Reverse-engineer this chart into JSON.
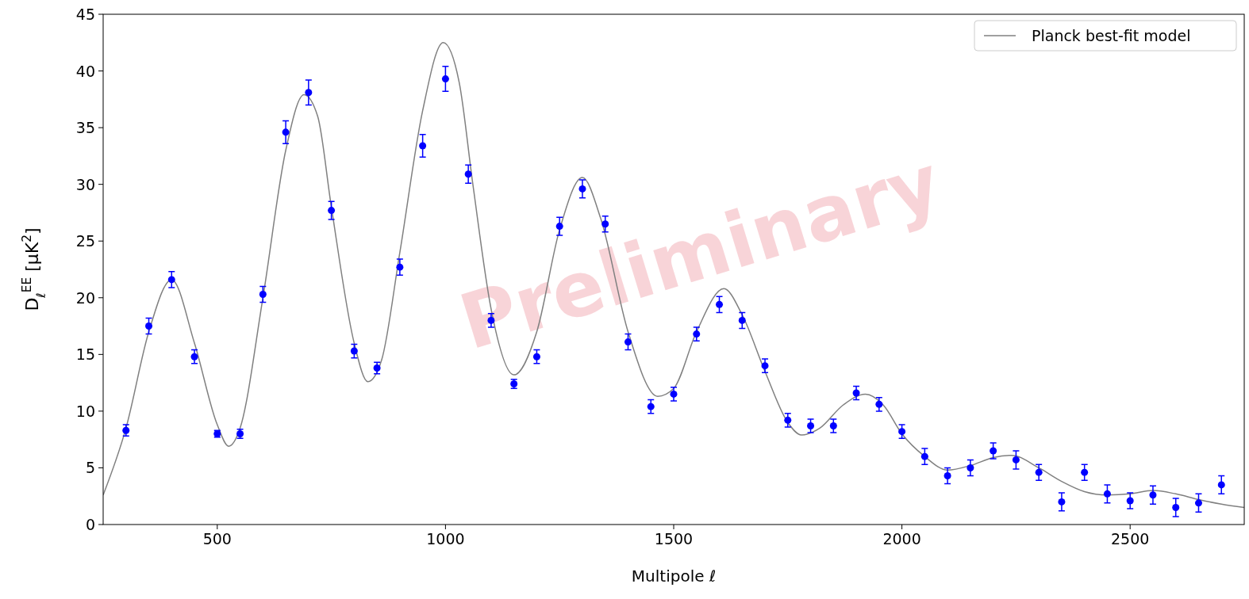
{
  "chart_data": {
    "type": "scatter",
    "xlabel": "Multipole ℓ",
    "ylabel": "D$_{ℓ}$$^{EE}$ [μK$^{2}$]",
    "xlim": [
      250,
      2750
    ],
    "ylim": [
      0,
      45
    ],
    "xticks": [
      500,
      1000,
      1500,
      2000,
      2500
    ],
    "yticks": [
      0,
      5,
      10,
      15,
      20,
      25,
      30,
      35,
      40,
      45
    ],
    "legend": "top right",
    "annotations": [
      "Preliminary"
    ],
    "series": [
      {
        "type": "line",
        "name": "Planck best-fit model",
        "color": "#808080",
        "line_style": "solid",
        "x": [
          250,
          300,
          350,
          400,
          450,
          500,
          525,
          550,
          600,
          650,
          690,
          720,
          750,
          800,
          830,
          860,
          900,
          950,
          995,
          1030,
          1060,
          1100,
          1150,
          1200,
          1250,
          1300,
          1340,
          1400,
          1465,
          1500,
          1550,
          1610,
          1650,
          1700,
          1750,
          1780,
          1820,
          1870,
          1920,
          1960,
          2000,
          2050,
          2100,
          2150,
          2200,
          2240,
          2300,
          2350,
          2400,
          2450,
          2500,
          2550,
          2600,
          2650,
          2700,
          2750
        ],
        "values": [
          2.6,
          8.5,
          17,
          21.6,
          16,
          8.8,
          6.9,
          8.5,
          20,
          33,
          37.9,
          36,
          28,
          16,
          12.6,
          14.5,
          24,
          36.5,
          42.5,
          39,
          30,
          19,
          13.2,
          17,
          26,
          30.6,
          27,
          17,
          11.3,
          12,
          17,
          20.8,
          18.5,
          13.5,
          9,
          7.9,
          8.5,
          10.5,
          11.5,
          10.5,
          8,
          6,
          4.8,
          5.2,
          5.9,
          6.1,
          5,
          3.8,
          2.9,
          2.6,
          2.7,
          3.0,
          2.7,
          2.2,
          1.8,
          1.5
        ]
      },
      {
        "marker": "circle",
        "color": "#0000ff",
        "x": [
          300,
          350,
          400,
          450,
          500,
          550,
          600,
          650,
          700,
          750,
          800,
          850,
          900,
          950,
          1000,
          1050,
          1100,
          1150,
          1200,
          1250,
          1300,
          1350,
          1400,
          1450,
          1500,
          1550,
          1600,
          1650,
          1700,
          1750,
          1800,
          1850,
          1900,
          1950,
          2000,
          2050,
          2100,
          2150,
          2200,
          2250,
          2300,
          2350,
          2400,
          2450,
          2500,
          2550,
          2600,
          2650,
          2700
        ],
        "values": [
          8.3,
          17.5,
          21.6,
          14.8,
          8.0,
          8.0,
          20.3,
          34.6,
          38.1,
          27.7,
          15.3,
          13.8,
          22.7,
          33.4,
          39.3,
          30.9,
          18.0,
          12.4,
          14.8,
          26.3,
          29.6,
          26.5,
          16.1,
          10.4,
          11.5,
          16.8,
          19.4,
          18.0,
          14.0,
          9.2,
          8.7,
          8.7,
          11.6,
          10.6,
          8.2,
          6.0,
          4.3,
          5.0,
          6.5,
          5.7,
          4.6,
          2.0,
          4.6,
          2.7,
          2.1,
          2.6,
          1.5,
          1.9,
          3.5
        ],
        "errors": [
          0.5,
          0.7,
          0.7,
          0.6,
          0.3,
          0.4,
          0.7,
          1.0,
          1.1,
          0.8,
          0.6,
          0.5,
          0.7,
          1.0,
          1.1,
          0.8,
          0.6,
          0.4,
          0.6,
          0.8,
          0.8,
          0.7,
          0.7,
          0.6,
          0.6,
          0.6,
          0.7,
          0.7,
          0.6,
          0.6,
          0.6,
          0.6,
          0.6,
          0.6,
          0.6,
          0.7,
          0.7,
          0.7,
          0.7,
          0.8,
          0.7,
          0.8,
          0.7,
          0.8,
          0.7,
          0.8,
          0.8,
          0.8,
          0.8
        ]
      }
    ]
  }
}
